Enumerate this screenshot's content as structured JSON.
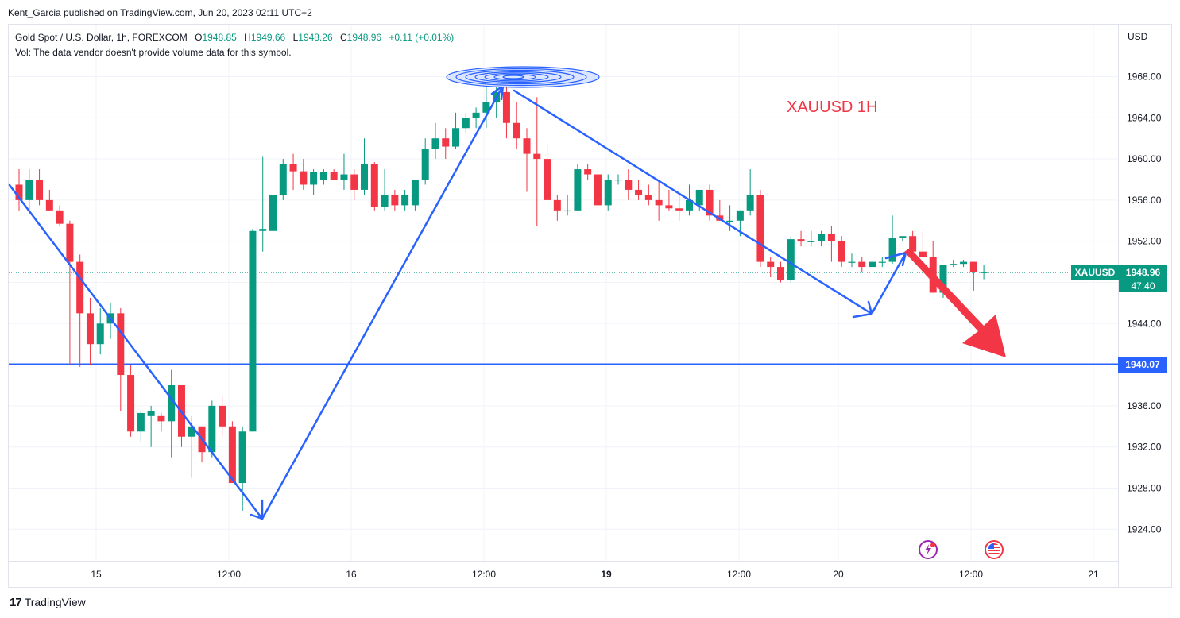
{
  "header": {
    "published": "Kent_Garcia published on TradingView.com, Jun 20, 2023 02:11 UTC+2"
  },
  "legend": {
    "symbol": "Gold Spot / U.S. Dollar, 1h, FOREXCOM",
    "o_label": "O",
    "o": "1948.85",
    "h_label": "H",
    "h": "1949.66",
    "l_label": "L",
    "l": "1948.26",
    "c_label": "C",
    "c": "1948.96",
    "change": "+0.11 (+0.01%)",
    "vol": "Vol: The data vendor doesn't provide volume data for this symbol."
  },
  "annotation": "XAUUSD 1H",
  "currency": "USD",
  "price_tag": {
    "symbol": "XAUUSD",
    "price": "1948.96",
    "countdown": "47:40"
  },
  "level_tag": "1940.07",
  "footer": {
    "logo_mark": "17",
    "logo_text": "TradingView"
  },
  "icons": {
    "flash": "lightning-icon",
    "flag": "us-flag-icon"
  },
  "colors": {
    "up": "#089981",
    "down": "#f23645",
    "drawing": "#2962ff",
    "arrow": "#f23645"
  },
  "chart_data": {
    "type": "candlestick",
    "symbol": "XAUUSD",
    "timeframe": "1h",
    "ylim": [
      1921.5,
      1972
    ],
    "y_ticks": [
      "1968.00",
      "1964.00",
      "1960.00",
      "1956.00",
      "1952.00",
      "1948.00",
      "1944.00",
      "1940.00",
      "1936.00",
      "1932.00",
      "1928.00",
      "1924.00"
    ],
    "x_ticks": [
      {
        "label": "15",
        "x": 121,
        "bold": false
      },
      {
        "label": "12:00",
        "x": 288,
        "bold": false
      },
      {
        "label": "16",
        "x": 442,
        "bold": false
      },
      {
        "label": "12:00",
        "x": 609,
        "bold": false
      },
      {
        "label": "19",
        "x": 763,
        "bold": true
      },
      {
        "label": "12:00",
        "x": 930,
        "bold": false
      },
      {
        "label": "20",
        "x": 1055,
        "bold": false
      },
      {
        "label": "12:00",
        "x": 1222,
        "bold": false
      },
      {
        "label": "21",
        "x": 1376,
        "bold": false
      }
    ],
    "horizontal_level": 1940.07,
    "last_price": 1948.96,
    "candles": [
      [
        1957.5,
        1959.0,
        1955.0,
        1956.0
      ],
      [
        1956.0,
        1959.0,
        1955.0,
        1958.0
      ],
      [
        1958.0,
        1959.0,
        1955.5,
        1956.0
      ],
      [
        1956.0,
        1957.0,
        1955.0,
        1955.0
      ],
      [
        1955.0,
        1955.5,
        1953.5,
        1953.7
      ],
      [
        1953.7,
        1954.0,
        1940.0,
        1950.0
      ],
      [
        1950.0,
        1950.7,
        1939.8,
        1945.0
      ],
      [
        1945.0,
        1946.5,
        1940.0,
        1942.0
      ],
      [
        1942.0,
        1945.5,
        1941.0,
        1944.0
      ],
      [
        1944.0,
        1946.0,
        1942.5,
        1945.0
      ],
      [
        1945.0,
        1945.5,
        1935.5,
        1939.0
      ],
      [
        1939.0,
        1940.0,
        1933.0,
        1933.5
      ],
      [
        1933.5,
        1935.5,
        1932.5,
        1935.3
      ],
      [
        1935.0,
        1936.0,
        1932.0,
        1935.5
      ],
      [
        1935.0,
        1935.3,
        1933.5,
        1934.5
      ],
      [
        1934.5,
        1939.5,
        1931.0,
        1938.0
      ],
      [
        1938.0,
        1938.0,
        1932.0,
        1933.0
      ],
      [
        1933.0,
        1935.0,
        1929.0,
        1934.0
      ],
      [
        1934.0,
        1934.0,
        1930.5,
        1931.5
      ],
      [
        1931.5,
        1936.5,
        1931.0,
        1936.0
      ],
      [
        1936.0,
        1937.0,
        1933.0,
        1934.0
      ],
      [
        1934.0,
        1934.5,
        1928.5,
        1928.5
      ],
      [
        1928.5,
        1934.0,
        1925.8,
        1933.5
      ],
      [
        1933.5,
        1953.2,
        1933.5,
        1953.0
      ],
      [
        1953.0,
        1960.2,
        1951.0,
        1953.2
      ],
      [
        1953.0,
        1958.0,
        1952.0,
        1956.5
      ],
      [
        1956.5,
        1960.0,
        1956.0,
        1959.5
      ],
      [
        1959.5,
        1960.5,
        1957.0,
        1958.8
      ],
      [
        1958.8,
        1960.0,
        1957.0,
        1957.5
      ],
      [
        1957.5,
        1959.0,
        1956.5,
        1958.7
      ],
      [
        1958.0,
        1959.0,
        1957.5,
        1958.7
      ],
      [
        1958.7,
        1959.0,
        1958.0,
        1958.0
      ],
      [
        1958.0,
        1960.5,
        1957.0,
        1958.5
      ],
      [
        1958.5,
        1959.0,
        1956.0,
        1957.0
      ],
      [
        1957.0,
        1962.0,
        1956.5,
        1959.5
      ],
      [
        1959.5,
        1959.7,
        1955.0,
        1955.3
      ],
      [
        1955.3,
        1959.0,
        1955.0,
        1956.5
      ],
      [
        1956.5,
        1957.0,
        1955.0,
        1955.5
      ],
      [
        1955.5,
        1957.0,
        1955.0,
        1956.5
      ],
      [
        1955.5,
        1958.0,
        1955.0,
        1958.0
      ],
      [
        1958.0,
        1962.0,
        1957.5,
        1961.0
      ],
      [
        1961.0,
        1963.5,
        1960.0,
        1962.0
      ],
      [
        1962.0,
        1963.0,
        1960.0,
        1961.2
      ],
      [
        1961.2,
        1964.5,
        1961.0,
        1963.0
      ],
      [
        1963.0,
        1964.5,
        1962.5,
        1964.0
      ],
      [
        1964.0,
        1965.0,
        1963.0,
        1964.5
      ],
      [
        1964.5,
        1967.0,
        1963.0,
        1965.5
      ],
      [
        1965.5,
        1967.0,
        1964.0,
        1966.5
      ],
      [
        1966.5,
        1967.0,
        1962.0,
        1963.5
      ],
      [
        1963.5,
        1965.5,
        1961.0,
        1962.0
      ],
      [
        1962.0,
        1963.0,
        1956.8,
        1960.5
      ],
      [
        1960.5,
        1966.0,
        1953.5,
        1960.0
      ],
      [
        1960.0,
        1961.5,
        1956.5,
        1956.0
      ],
      [
        1956.0,
        1956.5,
        1954.0,
        1955.0
      ],
      [
        1955.0,
        1956.5,
        1954.5,
        1955.0
      ],
      [
        1955.0,
        1959.5,
        1955.0,
        1959.0
      ],
      [
        1959.0,
        1959.5,
        1958.0,
        1958.5
      ],
      [
        1958.5,
        1959.0,
        1955.0,
        1955.5
      ],
      [
        1955.5,
        1958.5,
        1955.0,
        1958.0
      ],
      [
        1958.0,
        1958.5,
        1957.5,
        1958.0
      ],
      [
        1958.0,
        1959.0,
        1956.0,
        1957.0
      ],
      [
        1957.0,
        1958.0,
        1956.0,
        1956.5
      ],
      [
        1956.5,
        1957.5,
        1955.5,
        1956.0
      ],
      [
        1956.0,
        1958.0,
        1954.0,
        1955.5
      ],
      [
        1955.5,
        1957.0,
        1955.0,
        1955.2
      ],
      [
        1955.2,
        1956.5,
        1954.0,
        1955.0
      ],
      [
        1955.0,
        1957.5,
        1954.5,
        1956.0
      ],
      [
        1955.5,
        1957.0,
        1955.0,
        1957.0
      ],
      [
        1957.0,
        1957.5,
        1954.0,
        1954.5
      ],
      [
        1954.5,
        1956.0,
        1954.0,
        1954.0
      ],
      [
        1954.0,
        1955.5,
        1953.0,
        1954.0
      ],
      [
        1954.0,
        1955.0,
        1952.5,
        1955.0
      ],
      [
        1955.0,
        1959.0,
        1954.5,
        1956.5
      ],
      [
        1956.5,
        1957.0,
        1949.5,
        1950.0
      ],
      [
        1950.0,
        1950.5,
        1948.5,
        1949.5
      ],
      [
        1949.5,
        1950.0,
        1948.0,
        1948.2
      ],
      [
        1948.2,
        1952.5,
        1948.0,
        1952.2
      ],
      [
        1952.2,
        1953.0,
        1951.5,
        1952.0
      ],
      [
        1952.0,
        1953.0,
        1951.5,
        1952.0
      ],
      [
        1952.0,
        1953.0,
        1951.5,
        1952.7
      ],
      [
        1952.7,
        1953.5,
        1950.0,
        1952.0
      ],
      [
        1952.0,
        1952.5,
        1949.5,
        1950.0
      ],
      [
        1950.0,
        1950.8,
        1949.5,
        1950.0
      ],
      [
        1950.0,
        1950.5,
        1949.0,
        1949.5
      ],
      [
        1949.5,
        1950.5,
        1949.0,
        1950.0
      ],
      [
        1950.0,
        1950.5,
        1949.5,
        1950.0
      ],
      [
        1950.0,
        1954.5,
        1949.8,
        1952.3
      ],
      [
        1952.3,
        1952.5,
        1952.0,
        1952.5
      ],
      [
        1952.5,
        1953.0,
        1950.5,
        1951.0
      ],
      [
        1951.0,
        1953.0,
        1950.5,
        1950.5
      ],
      [
        1950.5,
        1952.0,
        1947.0,
        1947.0
      ],
      [
        1947.0,
        1949.5,
        1946.5,
        1949.7
      ],
      [
        1949.7,
        1950.2,
        1949.5,
        1949.8
      ],
      [
        1949.8,
        1950.2,
        1949.5,
        1950.0
      ],
      [
        1950.0,
        1950.0,
        1947.2,
        1949.0
      ],
      [
        1948.9,
        1949.7,
        1948.3,
        1949.0
      ]
    ]
  }
}
